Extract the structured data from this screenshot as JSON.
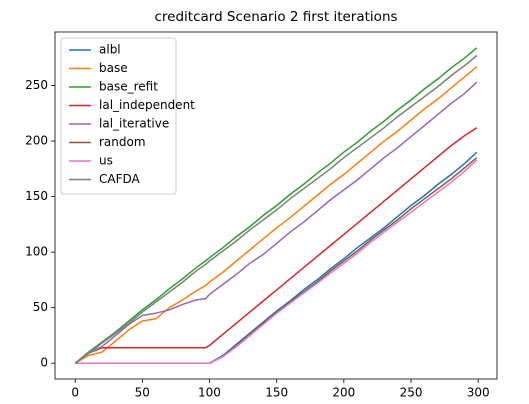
{
  "chart_data": {
    "type": "line",
    "title": "creditcard Scenario 2 first iterations",
    "x": [
      0,
      10,
      20,
      30,
      40,
      50,
      60,
      70,
      80,
      90,
      97,
      100,
      110,
      120,
      130,
      140,
      150,
      160,
      170,
      180,
      190,
      200,
      210,
      220,
      230,
      240,
      250,
      260,
      270,
      280,
      290,
      299
    ],
    "series": [
      {
        "name": "albl",
        "color": "#1f77b4",
        "values": [
          0,
          0,
          0,
          0,
          0,
          0,
          0,
          0,
          0,
          0,
          0,
          0,
          7,
          17,
          27,
          37,
          47,
          56,
          66,
          75,
          85,
          94,
          104,
          113,
          122,
          132,
          142,
          151,
          161,
          170,
          180,
          190
        ]
      },
      {
        "name": "base",
        "color": "#ff7f0e",
        "values": [
          0,
          7,
          10,
          20,
          30,
          38,
          40,
          50,
          57,
          65,
          70,
          73,
          82,
          92,
          102,
          112,
          122,
          131,
          141,
          151,
          161,
          170,
          180,
          190,
          200,
          209,
          219,
          229,
          238,
          248,
          258,
          267
        ]
      },
      {
        "name": "base_refit",
        "color": "#2ca02c",
        "values": [
          0,
          10,
          19,
          28,
          38,
          48,
          57,
          67,
          76,
          86,
          92,
          95,
          104,
          114,
          123,
          133,
          142,
          152,
          161,
          171,
          180,
          190,
          199,
          209,
          218,
          228,
          237,
          247,
          256,
          266,
          275,
          284
        ]
      },
      {
        "name": "lal_independent",
        "color": "#d62728",
        "values": [
          0,
          9,
          14,
          14,
          14,
          14,
          14,
          14,
          14,
          14,
          14,
          16,
          26,
          36,
          46,
          56,
          66,
          76,
          86,
          96,
          106,
          116,
          126,
          136,
          146,
          156,
          166,
          176,
          186,
          196,
          205,
          212
        ]
      },
      {
        "name": "lal_iterative",
        "color": "#9467bd",
        "values": [
          0,
          9,
          15,
          25,
          35,
          43,
          45,
          48,
          53,
          57,
          58,
          62,
          71,
          80,
          90,
          98,
          108,
          118,
          127,
          137,
          147,
          156,
          165,
          175,
          185,
          194,
          204,
          214,
          224,
          234,
          243,
          253
        ]
      },
      {
        "name": "random",
        "color": "#8c564b",
        "values": [
          0,
          0,
          0,
          0,
          0,
          0,
          0,
          0,
          0,
          0,
          0,
          0,
          6,
          16,
          26,
          36,
          46,
          55,
          64,
          73,
          83,
          92,
          101,
          111,
          120,
          129,
          139,
          148,
          157,
          166,
          176,
          185
        ]
      },
      {
        "name": "us",
        "color": "#e377c2",
        "values": [
          0,
          0,
          0,
          0,
          0,
          0,
          0,
          0,
          0,
          0,
          0,
          0,
          6,
          15,
          25,
          35,
          45,
          54,
          63,
          72,
          81,
          90,
          99,
          109,
          118,
          127,
          136,
          145,
          154,
          163,
          173,
          183
        ]
      },
      {
        "name": "CAFDA",
        "color": "#7f7f7f",
        "values": [
          0,
          9,
          18,
          27,
          36,
          46,
          55,
          64,
          73,
          83,
          89,
          92,
          101,
          110,
          120,
          129,
          138,
          148,
          157,
          166,
          175,
          185,
          194,
          203,
          212,
          222,
          231,
          240,
          249,
          259,
          268,
          277
        ]
      }
    ],
    "xlim": [
      -15,
      314
    ],
    "ylim": [
      -14.2,
      298.2
    ],
    "xticks": [
      0,
      50,
      100,
      150,
      200,
      250,
      300
    ],
    "yticks": [
      0,
      50,
      100,
      150,
      200,
      250
    ],
    "legend": "upper left"
  }
}
